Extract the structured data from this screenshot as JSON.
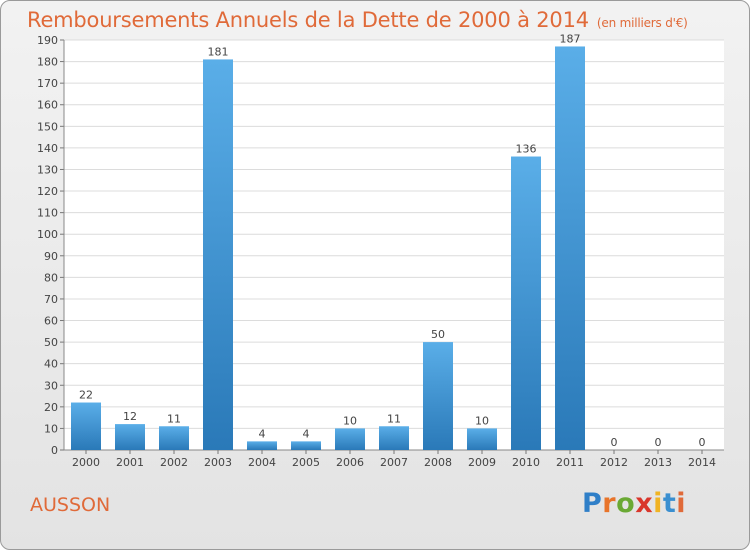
{
  "header": {
    "title": "Remboursements Annuels de la Dette de 2000 à 2014",
    "unit": "(en milliers d'€)"
  },
  "commune": "AUSSON",
  "logo": {
    "text": "Proxiti",
    "letter_colors": [
      "#2f7fc8",
      "#e8742a",
      "#6aa934",
      "#d9362b",
      "#f0b323",
      "#3a8fd0",
      "#e06a39"
    ]
  },
  "chart_data": {
    "type": "bar",
    "title": "Remboursements Annuels de la Dette de 2000 à 2014",
    "unit": "(en milliers d'€)",
    "categories": [
      "2000",
      "2001",
      "2002",
      "2003",
      "2004",
      "2005",
      "2006",
      "2007",
      "2008",
      "2009",
      "2010",
      "2011",
      "2012",
      "2013",
      "2014"
    ],
    "values": [
      22,
      12,
      11,
      181,
      4,
      4,
      10,
      11,
      50,
      10,
      136,
      187,
      0,
      0,
      0
    ],
    "ylim": [
      0,
      190
    ],
    "ytick_step": 10,
    "grid": true,
    "bar_color_light": "#5aaee8",
    "bar_color_dark": "#2a79b8"
  }
}
